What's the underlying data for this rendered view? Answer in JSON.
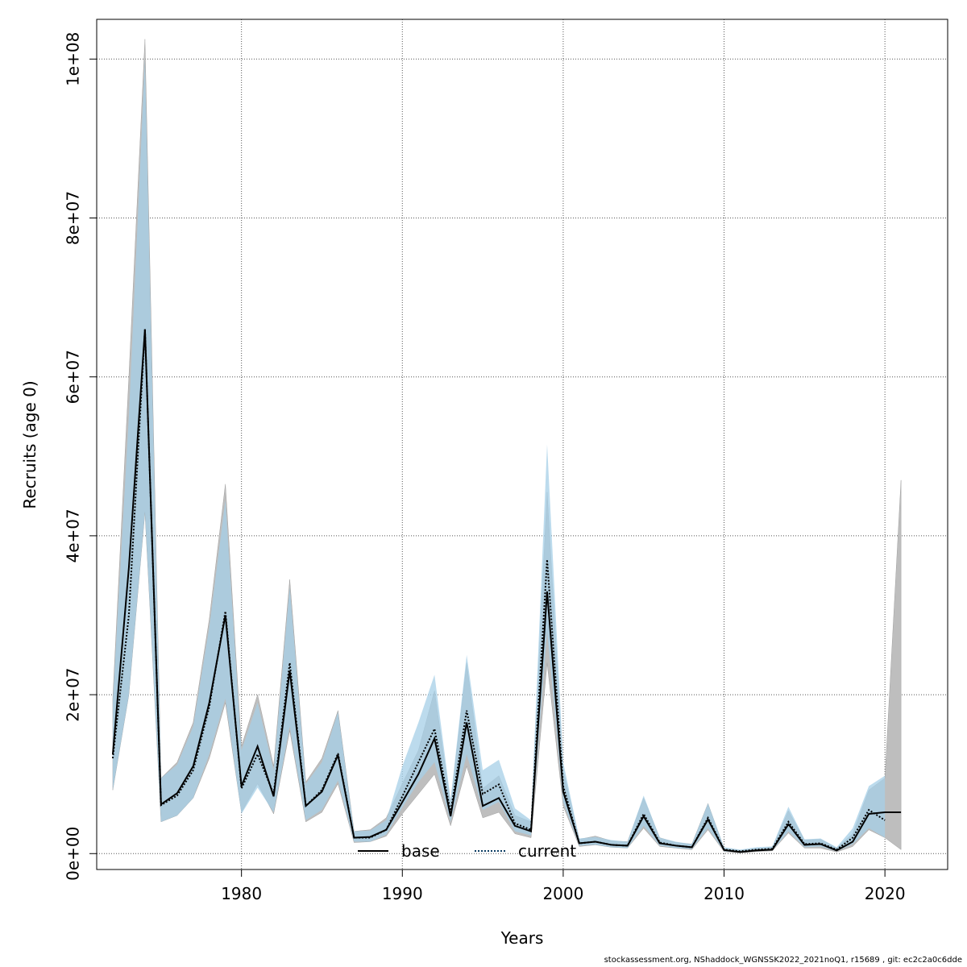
{
  "chart_data": {
    "type": "line",
    "xlabel": "Years",
    "ylabel": "Recruits (age 0)",
    "xlim": [
      1971.0,
      2023.9
    ],
    "ylim": [
      -2000000,
      105000000
    ],
    "xticks": [
      1980,
      1990,
      2000,
      2010,
      2020
    ],
    "xtick_labels": [
      "1980",
      "1990",
      "2000",
      "2010",
      "2020"
    ],
    "yticks": [
      0,
      20000000,
      40000000,
      60000000,
      80000000,
      100000000
    ],
    "ytick_labels": [
      "0e+00",
      "2e+07",
      "4e+07",
      "6e+07",
      "8e+07",
      "1e+08"
    ],
    "grid": true,
    "legend_position": "bottom-center",
    "x": [
      1972,
      1973,
      1974,
      1975,
      1976,
      1977,
      1978,
      1979,
      1980,
      1981,
      1982,
      1983,
      1984,
      1985,
      1986,
      1987,
      1988,
      1989,
      1990,
      1991,
      1992,
      1993,
      1994,
      1995,
      1996,
      1997,
      1998,
      1999,
      2000,
      2001,
      2002,
      2003,
      2004,
      2005,
      2006,
      2007,
      2008,
      2009,
      2010,
      2011,
      2012,
      2013,
      2014,
      2015,
      2016,
      2017,
      2018,
      2019,
      2020,
      2021
    ],
    "series": [
      {
        "name": "base",
        "color": "#000000",
        "band_color": "#bebebe",
        "values": [
          12500000,
          36000000,
          66000000,
          6200000,
          7600000,
          11000000,
          19000000,
          30000000,
          8500000,
          13500000,
          7200000,
          23000000,
          6000000,
          7800000,
          12400000,
          2000000,
          2100000,
          3000000,
          6500000,
          10000000,
          14500000,
          4700000,
          16500000,
          6000000,
          7000000,
          3500000,
          2800000,
          33000000,
          7800000,
          1300000,
          1500000,
          1100000,
          1000000,
          4700000,
          1300000,
          1000000,
          800000,
          4300000,
          450000,
          200000,
          400000,
          500000,
          3700000,
          1100000,
          1200000,
          400000,
          1500000,
          5000000,
          5200000,
          5200000
        ],
        "lower": [
          8000000,
          20000000,
          43000000,
          4000000,
          4800000,
          7000000,
          12000000,
          19000000,
          5200000,
          8800000,
          5000000,
          15500000,
          4000000,
          5200000,
          8800000,
          1400000,
          1500000,
          2200000,
          5000000,
          7500000,
          10000000,
          3500000,
          11000000,
          4500000,
          5200000,
          2500000,
          2000000,
          24000000,
          6000000,
          900000,
          1100000,
          800000,
          700000,
          3200000,
          900000,
          700000,
          500000,
          3000000,
          250000,
          100000,
          250000,
          350000,
          2600000,
          700000,
          700000,
          200000,
          900000,
          3000000,
          2000000,
          500000
        ],
        "upper": [
          19500000,
          60000000,
          102500000,
          9500000,
          11500000,
          16500000,
          29500000,
          46500000,
          13500000,
          20000000,
          11000000,
          34500000,
          9000000,
          12000000,
          18000000,
          2800000,
          3000000,
          4500000,
          8800000,
          13000000,
          20500000,
          6200000,
          24000000,
          8200000,
          9800000,
          4800000,
          4000000,
          45500000,
          10500000,
          1800000,
          2200000,
          1600000,
          1500000,
          7000000,
          2000000,
          1400000,
          1200000,
          6300000,
          700000,
          400000,
          600000,
          800000,
          5400000,
          1700000,
          1800000,
          700000,
          2500000,
          8000000,
          9500000,
          47000000
        ]
      },
      {
        "name": "current",
        "color": "#0a3b62",
        "band_color": "#a6cfe7",
        "values": [
          12000000,
          30000000,
          66000000,
          6100000,
          7300000,
          10500000,
          18500000,
          30500000,
          8200000,
          12500000,
          7500000,
          24000000,
          6000000,
          8000000,
          12600000,
          2000000,
          2000000,
          3000000,
          7200000,
          11500000,
          15700000,
          5200000,
          18000000,
          7500000,
          8700000,
          3800000,
          3000000,
          37000000,
          8500000,
          1300000,
          1500000,
          1100000,
          1000000,
          5000000,
          1400000,
          1000000,
          800000,
          4500000,
          500000,
          300000,
          500000,
          600000,
          4000000,
          1200000,
          1300000,
          500000,
          2000000,
          5500000,
          4200000,
          null
        ],
        "lower": [
          8000000,
          20000000,
          43000000,
          4000000,
          4800000,
          7000000,
          12500000,
          19500000,
          5000000,
          8300000,
          5200000,
          16000000,
          4200000,
          5500000,
          9200000,
          1500000,
          1500000,
          2400000,
          5800000,
          9000000,
          11500000,
          4000000,
          12500000,
          5500000,
          6500000,
          2800000,
          2300000,
          28000000,
          6500000,
          1000000,
          1100000,
          800000,
          700000,
          3500000,
          1000000,
          700000,
          600000,
          3200000,
          300000,
          150000,
          300000,
          400000,
          2800000,
          800000,
          900000,
          300000,
          1200000,
          3200000,
          2000000,
          null
        ],
        "upper": [
          19000000,
          55000000,
          100000000,
          9500000,
          11200000,
          16000000,
          28500000,
          44500000,
          13000000,
          19000000,
          10500000,
          33500000,
          8800000,
          11500000,
          17800000,
          2800000,
          2900000,
          4200000,
          11000000,
          16500000,
          22500000,
          6800000,
          25000000,
          10500000,
          11800000,
          5700000,
          4200000,
          51500000,
          11500000,
          1900000,
          2100000,
          1700000,
          1500000,
          7300000,
          2000000,
          1500000,
          1200000,
          6300000,
          800000,
          500000,
          800000,
          900000,
          5900000,
          1800000,
          1900000,
          800000,
          3200000,
          8500000,
          9800000,
          null
        ]
      }
    ]
  },
  "footer_text": "stockassessment.org, NShaddock_WGNSSK2022_2021noQ1, r15689 , git: ec2c2a0c6dde"
}
